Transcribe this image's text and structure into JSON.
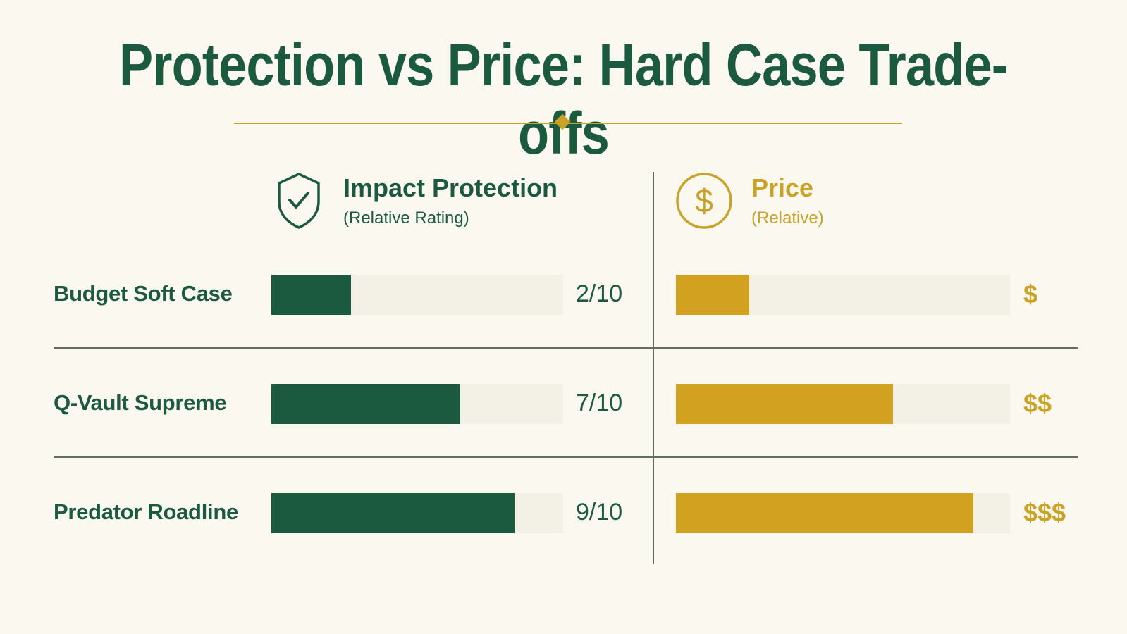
{
  "chart_data": {
    "type": "bar",
    "title": "Protection vs Price: Hard Case Trade-offs",
    "categories": [
      "Budget Soft Case",
      "Q-Vault Supreme",
      "Predator Roadline"
    ],
    "series": [
      {
        "name": "Impact Protection",
        "subtitle": "(Relative Rating)",
        "values": [
          2,
          7,
          9
        ],
        "labels": [
          "2/10",
          "7/10",
          "9/10"
        ],
        "range": [
          0,
          10
        ],
        "color": "#1c5a3f"
      },
      {
        "name": "Price",
        "subtitle": "(Relative)",
        "values": [
          0.22,
          0.65,
          0.89
        ],
        "labels": [
          "$",
          "$$",
          "$$$"
        ],
        "range": [
          0,
          1
        ],
        "color": "#d1a11f"
      }
    ],
    "icons": [
      "shield-check-icon",
      "dollar-circle-icon"
    ],
    "grid": false
  }
}
